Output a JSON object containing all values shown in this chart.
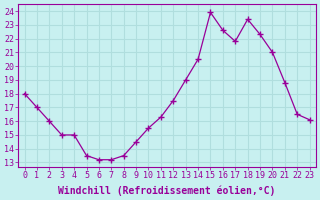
{
  "x": [
    0,
    1,
    2,
    3,
    4,
    5,
    6,
    7,
    8,
    9,
    10,
    11,
    12,
    13,
    14,
    15,
    16,
    17,
    18,
    19,
    20,
    21,
    22,
    23
  ],
  "y": [
    18,
    17,
    16,
    15,
    15,
    13.5,
    13.2,
    13.2,
    13.5,
    14.5,
    15.5,
    16.3,
    17.5,
    19.0,
    20.5,
    23.9,
    22.6,
    21.8,
    23.4,
    22.3,
    21.0,
    18.8,
    16.5,
    16.1
  ],
  "line_color": "#990099",
  "marker": "+",
  "marker_size": 4,
  "marker_lw": 1.0,
  "line_width": 0.9,
  "xlabel": "Windchill (Refroidissement éolien,°C)",
  "ylabel_ticks": [
    13,
    14,
    15,
    16,
    17,
    18,
    19,
    20,
    21,
    22,
    23,
    24
  ],
  "xlim": [
    -0.5,
    23.5
  ],
  "ylim": [
    12.7,
    24.5
  ],
  "bg_color": "#c8f0f0",
  "grid_color": "#b0dede",
  "tick_color": "#990099",
  "label_color": "#990099",
  "xlabel_fontsize": 7.0,
  "tick_fontsize": 6.0
}
